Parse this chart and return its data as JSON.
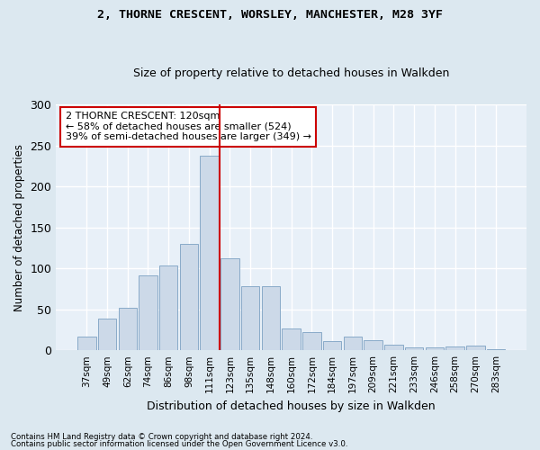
{
  "title_line1": "2, THORNE CRESCENT, WORSLEY, MANCHESTER, M28 3YF",
  "title_line2": "Size of property relative to detached houses in Walkden",
  "xlabel": "Distribution of detached houses by size in Walkden",
  "ylabel": "Number of detached properties",
  "bin_labels": [
    "37sqm",
    "49sqm",
    "62sqm",
    "74sqm",
    "86sqm",
    "98sqm",
    "111sqm",
    "123sqm",
    "135sqm",
    "148sqm",
    "160sqm",
    "172sqm",
    "184sqm",
    "197sqm",
    "209sqm",
    "221sqm",
    "233sqm",
    "246sqm",
    "258sqm",
    "270sqm",
    "283sqm"
  ],
  "bar_heights": [
    17,
    39,
    52,
    91,
    103,
    130,
    238,
    112,
    78,
    78,
    27,
    22,
    11,
    17,
    12,
    7,
    3,
    4,
    5,
    6,
    1
  ],
  "bar_color": "#ccd9e8",
  "bar_edge_color": "#89aac8",
  "vline_color": "#cc0000",
  "annotation_text": "2 THORNE CRESCENT: 120sqm\n← 58% of detached houses are smaller (524)\n39% of semi-detached houses are larger (349) →",
  "annotation_box_color": "#ffffff",
  "annotation_box_edge": "#cc0000",
  "footnote1": "Contains HM Land Registry data © Crown copyright and database right 2024.",
  "footnote2": "Contains public sector information licensed under the Open Government Licence v3.0.",
  "background_color": "#dce8f0",
  "plot_bg_color": "#e8f0f8",
  "grid_color": "#ffffff",
  "ylim": [
    0,
    300
  ],
  "yticks": [
    0,
    50,
    100,
    150,
    200,
    250,
    300
  ]
}
